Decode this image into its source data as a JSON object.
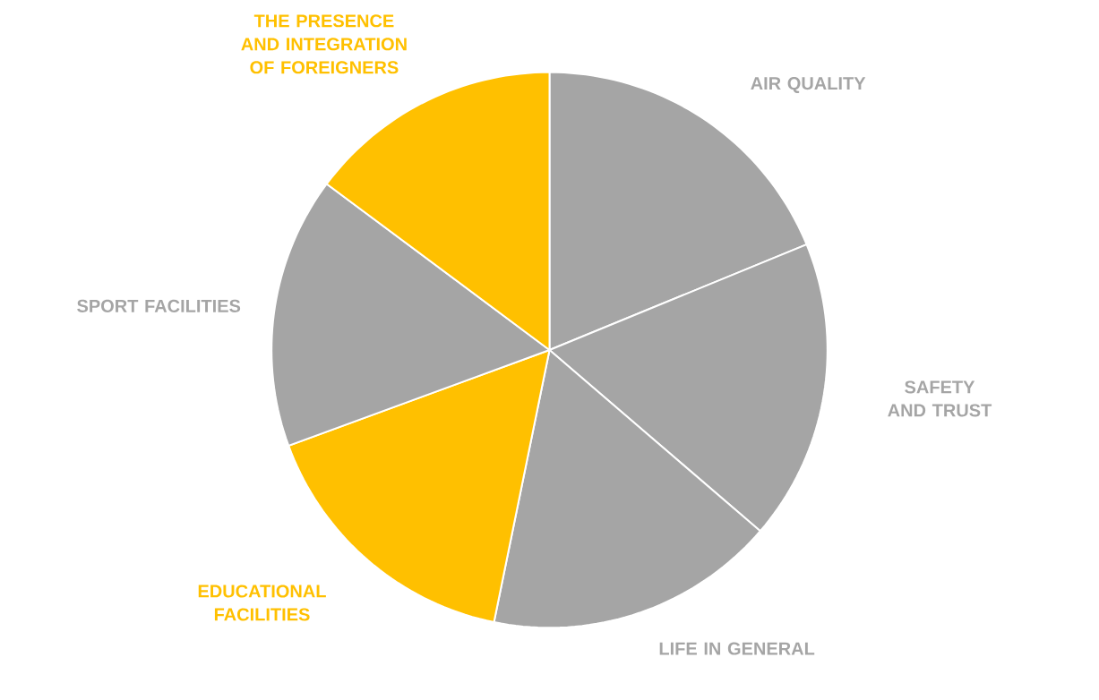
{
  "chart_data": {
    "type": "pie",
    "categories": [
      "AIR QUALITY",
      "SAFETY AND TRUST",
      "LIFE IN GENERAL",
      "EDUCATIONAL FACILITIES",
      "SPORT FACILITIES",
      "THE PRESENCE AND INTEGRATION OF FOREIGNERS"
    ],
    "values": [
      18.8,
      17.5,
      16.9,
      16.2,
      15.8,
      14.8
    ],
    "colors": [
      "#a5a5a5",
      "#a5a5a5",
      "#a5a5a5",
      "#ffc000",
      "#a5a5a5",
      "#ffc000"
    ]
  }
}
